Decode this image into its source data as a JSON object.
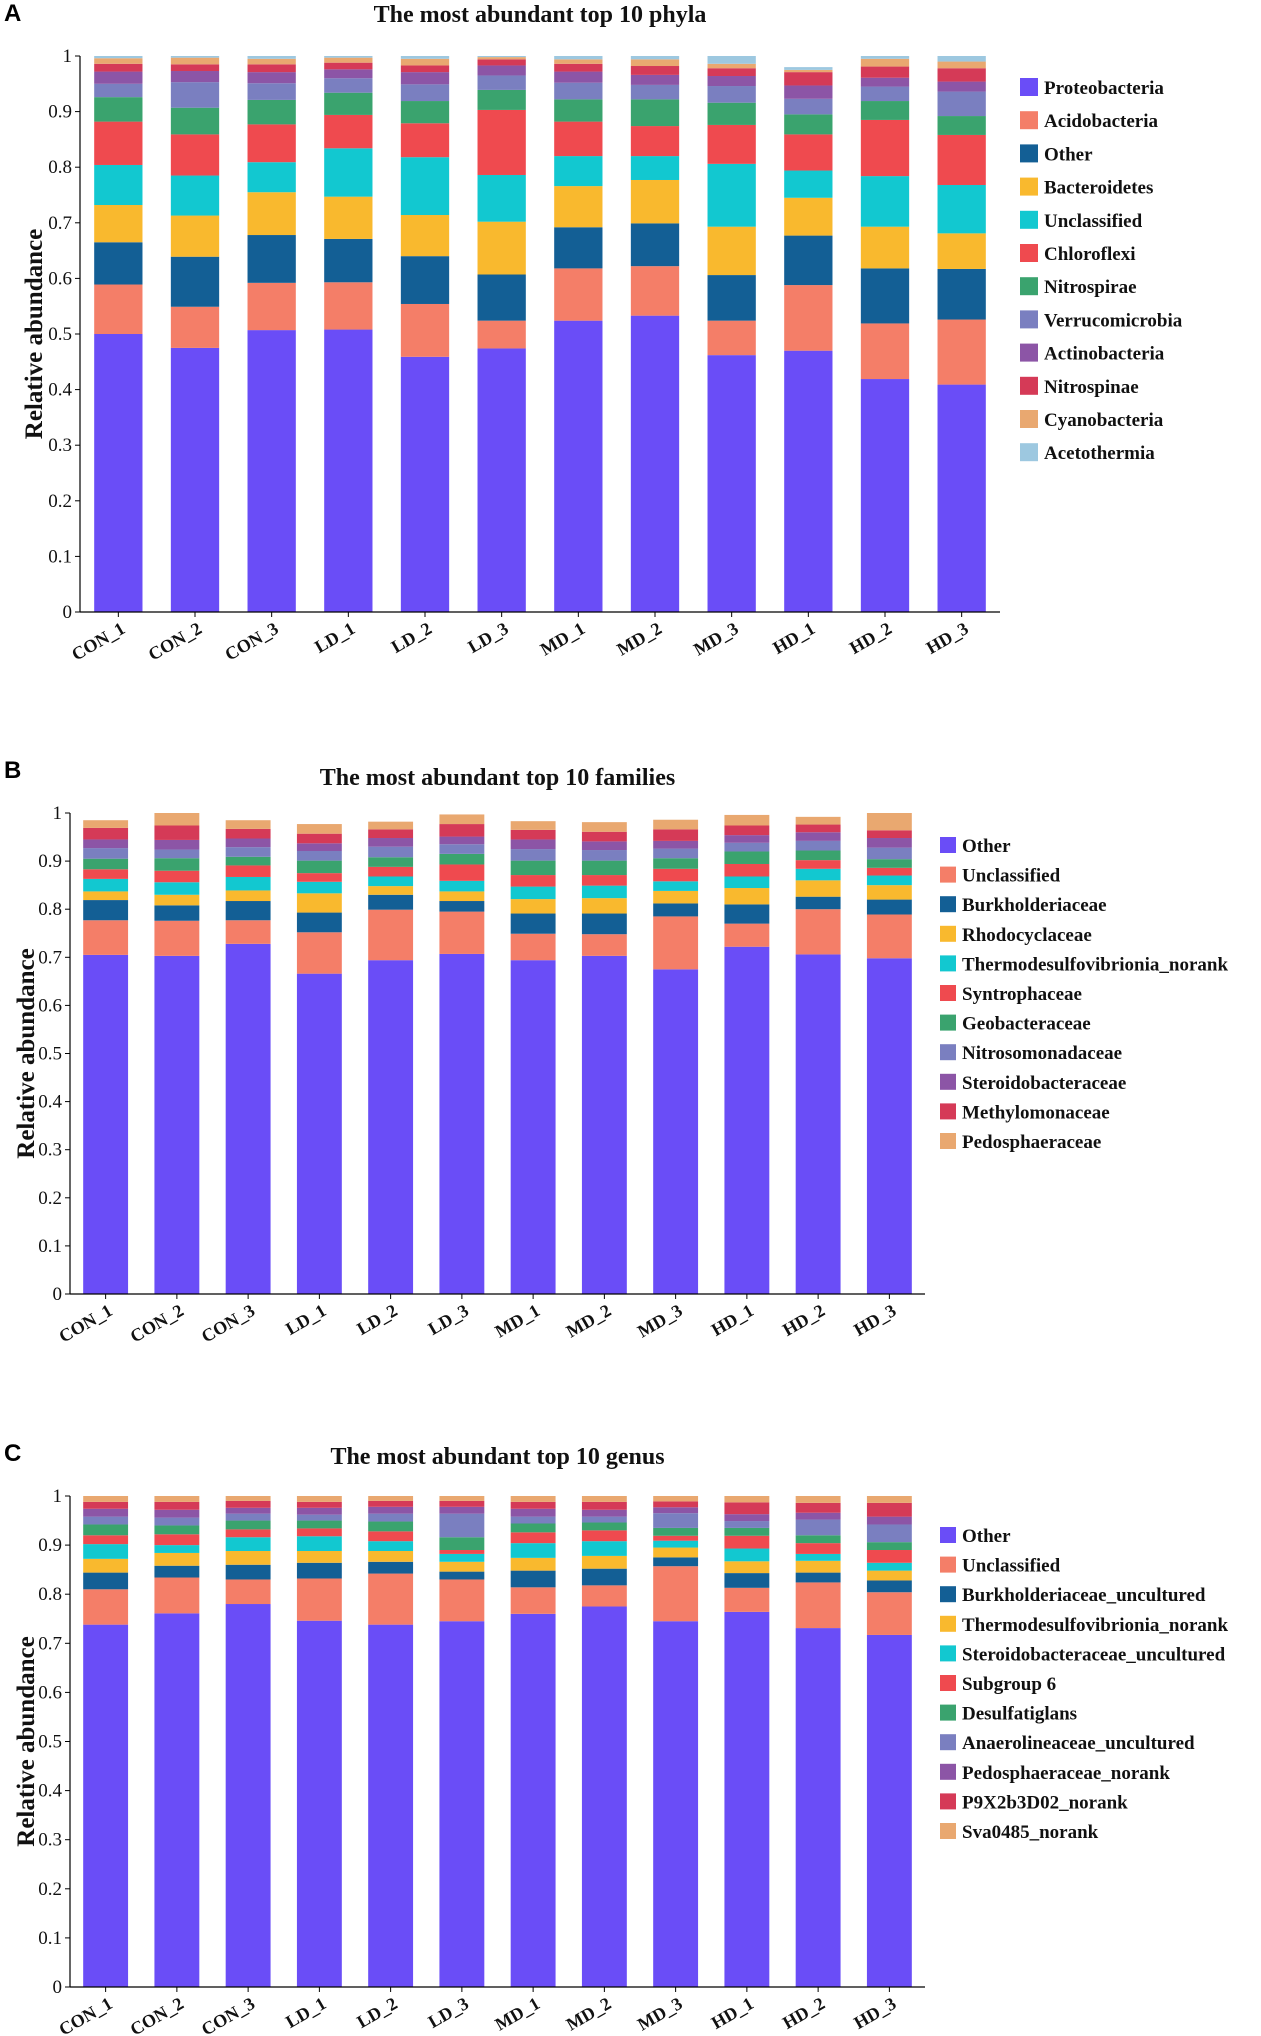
{
  "panels": [
    {
      "letter": "A",
      "chart_data": {
        "type": "bar",
        "stacked": true,
        "title": "The most abundant top 10 phyla",
        "xlabel": "",
        "ylabel": "Relative abundance",
        "ylim": [
          0,
          1
        ],
        "yticks": [
          "0",
          "0.1",
          "0.2",
          "0.3",
          "0.4",
          "0.5",
          "0.6",
          "0.7",
          "0.8",
          "0.9",
          "1"
        ],
        "categories": [
          "CON_1",
          "CON_2",
          "CON_3",
          "LD_1",
          "LD_2",
          "LD_3",
          "MD_1",
          "MD_2",
          "MD_3",
          "HD_1",
          "HD_2",
          "HD_3"
        ],
        "series": [
          {
            "name": "Proteobacteria",
            "color": "#6a4df7",
            "values": [
              0.5,
              0.475,
              0.507,
              0.508,
              0.459,
              0.474,
              0.524,
              0.533,
              0.462,
              0.47,
              0.419,
              0.409
            ]
          },
          {
            "name": "Acidobacteria",
            "color": "#f47e68",
            "values": [
              0.089,
              0.074,
              0.085,
              0.085,
              0.095,
              0.05,
              0.094,
              0.089,
              0.062,
              0.118,
              0.1,
              0.117
            ]
          },
          {
            "name": "Other",
            "color": "#135f95",
            "values": [
              0.076,
              0.09,
              0.086,
              0.078,
              0.086,
              0.083,
              0.074,
              0.077,
              0.082,
              0.089,
              0.099,
              0.091
            ]
          },
          {
            "name": "Bacteroidetes",
            "color": "#f9b92e",
            "values": [
              0.067,
              0.074,
              0.077,
              0.076,
              0.074,
              0.095,
              0.074,
              0.078,
              0.087,
              0.068,
              0.075,
              0.064
            ]
          },
          {
            "name": "Unclassified",
            "color": "#12c8d0",
            "values": [
              0.072,
              0.072,
              0.054,
              0.087,
              0.104,
              0.084,
              0.054,
              0.043,
              0.113,
              0.049,
              0.091,
              0.087
            ]
          },
          {
            "name": "Chloroflexi",
            "color": "#ef4a4f",
            "values": [
              0.078,
              0.074,
              0.068,
              0.06,
              0.061,
              0.117,
              0.062,
              0.054,
              0.07,
              0.065,
              0.101,
              0.09
            ]
          },
          {
            "name": "Nitrospirae",
            "color": "#3aa36e",
            "values": [
              0.044,
              0.048,
              0.044,
              0.04,
              0.04,
              0.036,
              0.04,
              0.048,
              0.04,
              0.036,
              0.034,
              0.034
            ]
          },
          {
            "name": "Verrucomicrobia",
            "color": "#7a7fc0",
            "values": [
              0.024,
              0.046,
              0.03,
              0.026,
              0.03,
              0.026,
              0.03,
              0.026,
              0.03,
              0.028,
              0.026,
              0.044
            ]
          },
          {
            "name": "Actinobacteria",
            "color": "#8c55a6",
            "values": [
              0.022,
              0.02,
              0.02,
              0.016,
              0.022,
              0.018,
              0.02,
              0.018,
              0.018,
              0.024,
              0.016,
              0.018
            ]
          },
          {
            "name": "Nitrospinae",
            "color": "#d53a57",
            "values": [
              0.014,
              0.012,
              0.014,
              0.012,
              0.012,
              0.011,
              0.014,
              0.016,
              0.014,
              0.024,
              0.02,
              0.024
            ]
          },
          {
            "name": "Cyanobacteria",
            "color": "#e9a870",
            "values": [
              0.01,
              0.012,
              0.01,
              0.009,
              0.012,
              0.004,
              0.008,
              0.012,
              0.008,
              0.004,
              0.014,
              0.012
            ]
          },
          {
            "name": "Acetothermia",
            "color": "#9dc8e0",
            "values": [
              0.004,
              0.003,
              0.005,
              0.003,
              0.005,
              0.002,
              0.006,
              0.006,
              0.014,
              0.005,
              0.005,
              0.01
            ]
          }
        ]
      }
    },
    {
      "letter": "B",
      "chart_data": {
        "type": "bar",
        "stacked": true,
        "title": "The most abundant top 10 families",
        "xlabel": "",
        "ylabel": "Relative abundance",
        "ylim": [
          0,
          1
        ],
        "yticks": [
          "0",
          "0.1",
          "0.2",
          "0.3",
          "0.4",
          "0.5",
          "0.6",
          "0.7",
          "0.8",
          "0.9",
          "1"
        ],
        "categories": [
          "CON_1",
          "CON_2",
          "CON_3",
          "LD_1",
          "LD_2",
          "LD_3",
          "MD_1",
          "MD_2",
          "MD_3",
          "HD_1",
          "HD_2",
          "HD_3"
        ],
        "series": [
          {
            "name": "Other",
            "color": "#6a4df7",
            "values": [
              0.705,
              0.703,
              0.728,
              0.666,
              0.694,
              0.707,
              0.694,
              0.703,
              0.675,
              0.722,
              0.706,
              0.698
            ]
          },
          {
            "name": "Unclassified",
            "color": "#f47e68",
            "values": [
              0.072,
              0.073,
              0.049,
              0.086,
              0.105,
              0.088,
              0.055,
              0.045,
              0.11,
              0.048,
              0.094,
              0.091
            ]
          },
          {
            "name": "Burkholderiaceae",
            "color": "#135f95",
            "values": [
              0.042,
              0.032,
              0.04,
              0.041,
              0.031,
              0.022,
              0.042,
              0.043,
              0.027,
              0.04,
              0.026,
              0.031
            ]
          },
          {
            "name": "Rhodocyclaceae",
            "color": "#f9b92e",
            "values": [
              0.018,
              0.022,
              0.022,
              0.04,
              0.018,
              0.02,
              0.03,
              0.032,
              0.026,
              0.034,
              0.034,
              0.03
            ]
          },
          {
            "name": "Thermodesulfovibrionia_norank",
            "color": "#12c8d0",
            "values": [
              0.026,
              0.026,
              0.028,
              0.024,
              0.02,
              0.022,
              0.026,
              0.026,
              0.02,
              0.024,
              0.024,
              0.02
            ]
          },
          {
            "name": "Syntrophaceae",
            "color": "#ef4a4f",
            "values": [
              0.02,
              0.024,
              0.024,
              0.018,
              0.02,
              0.034,
              0.024,
              0.022,
              0.026,
              0.026,
              0.018,
              0.016
            ]
          },
          {
            "name": "Geobacteraceae",
            "color": "#3aa36e",
            "values": [
              0.022,
              0.026,
              0.018,
              0.026,
              0.02,
              0.022,
              0.03,
              0.03,
              0.022,
              0.026,
              0.02,
              0.018
            ]
          },
          {
            "name": "Nitrosomonadaceae",
            "color": "#7a7fc0",
            "values": [
              0.022,
              0.018,
              0.02,
              0.02,
              0.022,
              0.02,
              0.024,
              0.022,
              0.02,
              0.018,
              0.02,
              0.024
            ]
          },
          {
            "name": "Steroidobacteraceae",
            "color": "#8c55a6",
            "values": [
              0.018,
              0.02,
              0.018,
              0.016,
              0.018,
              0.016,
              0.02,
              0.018,
              0.016,
              0.016,
              0.018,
              0.02
            ]
          },
          {
            "name": "Methylomonaceae",
            "color": "#d53a57",
            "values": [
              0.024,
              0.03,
              0.02,
              0.02,
              0.018,
              0.026,
              0.02,
              0.02,
              0.024,
              0.02,
              0.016,
              0.016
            ]
          },
          {
            "name": "Pedosphaeraceae",
            "color": "#e9a870",
            "values": [
              0.016,
              0.026,
              0.018,
              0.02,
              0.016,
              0.02,
              0.018,
              0.02,
              0.02,
              0.022,
              0.016,
              0.036
            ]
          }
        ]
      }
    },
    {
      "letter": "C",
      "chart_data": {
        "type": "bar",
        "stacked": true,
        "title": "The most abundant top 10 genus",
        "xlabel": "",
        "ylabel": "Relative abundance",
        "ylim": [
          0,
          1
        ],
        "yticks": [
          "0",
          "0.1",
          "0.2",
          "0.3",
          "0.4",
          "0.5",
          "0.6",
          "0.7",
          "0.8",
          "0.9",
          "1"
        ],
        "categories": [
          "CON_1",
          "CON_2",
          "CON_3",
          "LD_1",
          "LD_2",
          "LD_3",
          "MD_1",
          "MD_2",
          "MD_3",
          "HD_1",
          "HD_2",
          "HD_3"
        ],
        "series": [
          {
            "name": "Other",
            "color": "#6a4df7",
            "values": [
              0.738,
              0.761,
              0.78,
              0.746,
              0.738,
              0.745,
              0.76,
              0.775,
              0.745,
              0.764,
              0.731,
              0.717
            ]
          },
          {
            "name": "Unclassified",
            "color": "#f47e68",
            "values": [
              0.072,
              0.073,
              0.05,
              0.086,
              0.104,
              0.085,
              0.054,
              0.043,
              0.112,
              0.049,
              0.093,
              0.087
            ]
          },
          {
            "name": "Burkholderiaceae_uncultured",
            "color": "#135f95",
            "values": [
              0.034,
              0.024,
              0.03,
              0.032,
              0.024,
              0.016,
              0.034,
              0.034,
              0.018,
              0.03,
              0.02,
              0.024
            ]
          },
          {
            "name": "Thermodesulfovibrionia_norank",
            "color": "#f9b92e",
            "values": [
              0.028,
              0.026,
              0.028,
              0.024,
              0.022,
              0.02,
              0.026,
              0.026,
              0.02,
              0.024,
              0.024,
              0.02
            ]
          },
          {
            "name": "Steroidobacteraceae_uncultured",
            "color": "#12c8d0",
            "values": [
              0.03,
              0.016,
              0.028,
              0.03,
              0.02,
              0.016,
              0.03,
              0.03,
              0.014,
              0.026,
              0.014,
              0.016
            ]
          },
          {
            "name": "Subgroup 6",
            "color": "#ef4a4f",
            "values": [
              0.018,
              0.022,
              0.016,
              0.016,
              0.02,
              0.008,
              0.022,
              0.022,
              0.01,
              0.026,
              0.022,
              0.026
            ]
          },
          {
            "name": "Desulfatiglans",
            "color": "#3aa36e",
            "values": [
              0.022,
              0.018,
              0.018,
              0.016,
              0.02,
              0.026,
              0.018,
              0.016,
              0.016,
              0.016,
              0.016,
              0.016
            ]
          },
          {
            "name": "Anaerolineaceae_uncultured",
            "color": "#7a7fc0",
            "values": [
              0.016,
              0.016,
              0.014,
              0.012,
              0.016,
              0.048,
              0.014,
              0.012,
              0.03,
              0.014,
              0.032,
              0.036
            ]
          },
          {
            "name": "Pedosphaeraceae_norank",
            "color": "#8c55a6",
            "values": [
              0.016,
              0.016,
              0.012,
              0.014,
              0.014,
              0.014,
              0.016,
              0.014,
              0.012,
              0.014,
              0.014,
              0.016
            ]
          },
          {
            "name": "P9X2b3D02_norank",
            "color": "#d53a57",
            "values": [
              0.014,
              0.016,
              0.014,
              0.012,
              0.012,
              0.012,
              0.014,
              0.016,
              0.012,
              0.024,
              0.02,
              0.028
            ]
          },
          {
            "name": "Sva0485_norank",
            "color": "#e9a870",
            "values": [
              0.012,
              0.012,
              0.01,
              0.012,
              0.01,
              0.01,
              0.012,
              0.012,
              0.011,
              0.013,
              0.014,
              0.014
            ]
          }
        ]
      }
    }
  ]
}
